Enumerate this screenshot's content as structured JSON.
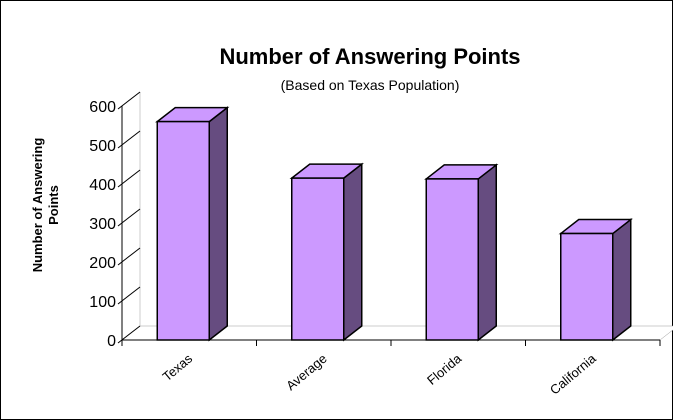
{
  "chart_data": {
    "type": "bar3d",
    "title": "Number of Answering Points",
    "subtitle": "(Based on Texas Population)",
    "ylabel": "Number of Answering Points",
    "categories": [
      "Texas",
      "Average",
      "Florida",
      "California"
    ],
    "values": [
      560,
      415,
      413,
      273
    ],
    "color": "#cc99ff",
    "side_color": "#664c80",
    "ylim": [
      0,
      600
    ],
    "yticks": [
      0,
      100,
      200,
      300,
      400,
      500,
      600
    ]
  }
}
